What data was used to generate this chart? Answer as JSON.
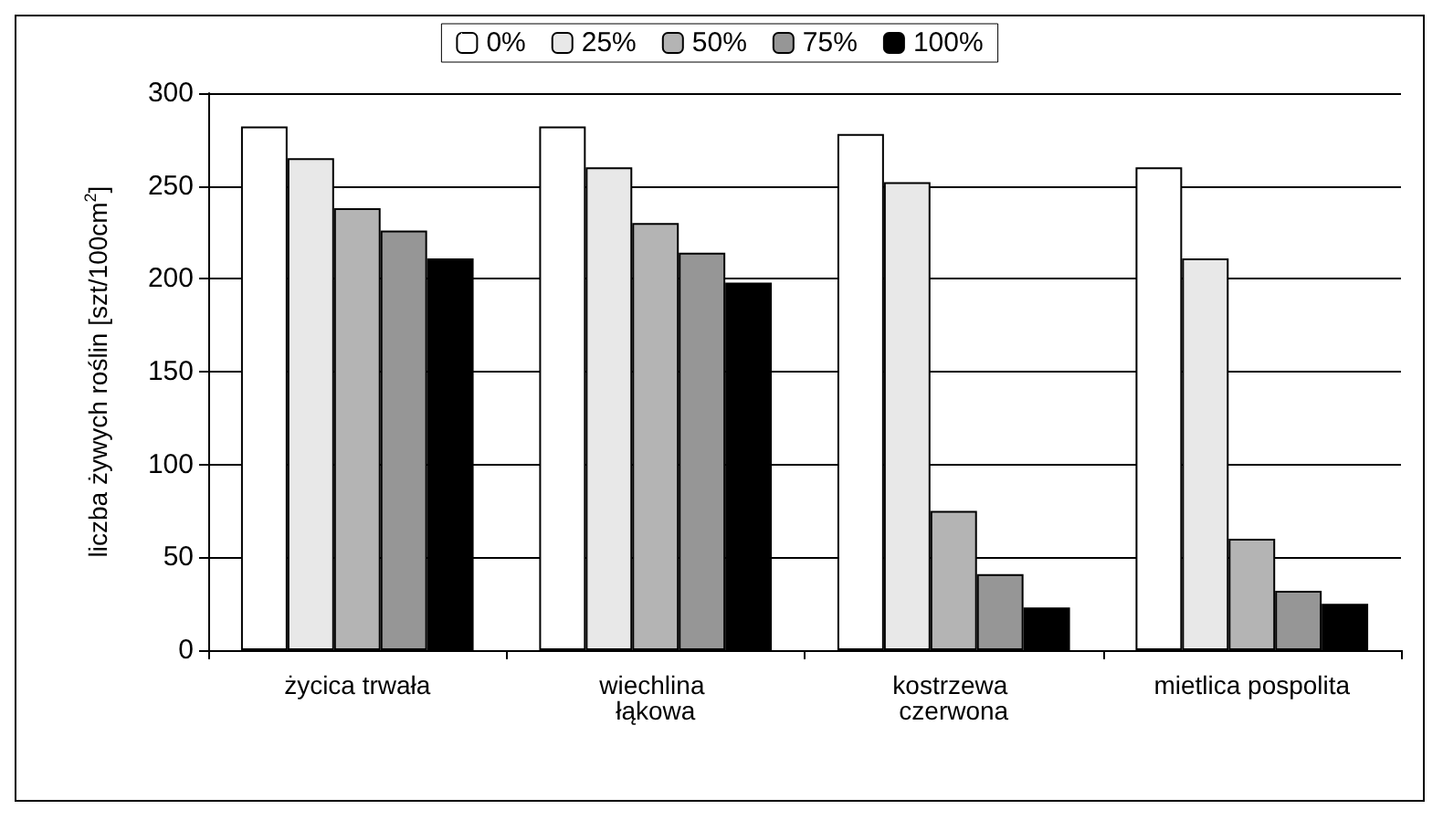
{
  "chart_data": {
    "type": "bar",
    "ylabel": "liczba żywych roślin [szt/100cm$^{2}$]",
    "categories": [
      "życica trwała",
      "wiechlina łąkowa",
      "kostrzewa czerwona",
      "mietlica pospolita"
    ],
    "series": [
      {
        "name": "0%",
        "color": "#ffffff",
        "values": [
          282,
          282,
          278,
          260
        ]
      },
      {
        "name": "25%",
        "color": "#e8e8e8",
        "values": [
          265,
          260,
          252,
          211
        ]
      },
      {
        "name": "50%",
        "color": "#b4b4b4",
        "values": [
          238,
          230,
          75,
          60
        ]
      },
      {
        "name": "75%",
        "color": "#969696",
        "values": [
          226,
          214,
          41,
          32
        ]
      },
      {
        "name": "100%",
        "color": "#000000",
        "values": [
          211,
          198,
          23,
          25
        ]
      }
    ],
    "ylim": [
      0,
      300
    ],
    "yticks": [
      0,
      50,
      100,
      150,
      200,
      250,
      300
    ],
    "grid": "y",
    "legend": "top"
  }
}
